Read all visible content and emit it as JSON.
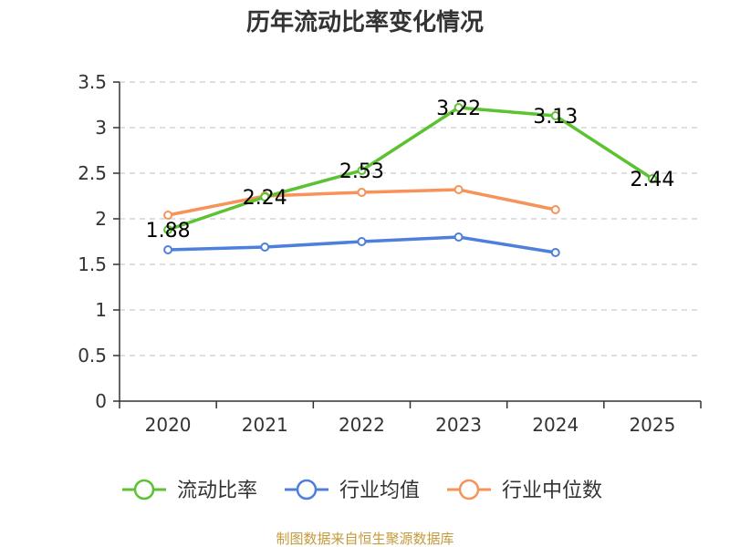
{
  "chart_data": {
    "type": "line",
    "title": "历年流动比率变化情况",
    "categories": [
      "2020",
      "2021",
      "2022",
      "2023",
      "2024",
      "2025"
    ],
    "ylim": [
      0,
      3.5
    ],
    "yticks": [
      "0",
      "0.5",
      "1",
      "1.5",
      "2",
      "2.5",
      "3",
      "3.5"
    ],
    "ytick_values": [
      0,
      0.5,
      1,
      1.5,
      2,
      2.5,
      3,
      3.5
    ],
    "grid": true,
    "legend_position": "bottom",
    "series": [
      {
        "name": "流动比率",
        "color": "#5cc232",
        "values": [
          1.88,
          2.24,
          2.53,
          3.22,
          3.13,
          2.44
        ],
        "labels": [
          "1.88",
          "2.24",
          "2.53",
          "3.22",
          "3.13",
          "2.44"
        ],
        "show_labels": true
      },
      {
        "name": "行业均值",
        "color": "#4d7fdc",
        "values": [
          1.66,
          1.69,
          1.75,
          1.8,
          1.63,
          null
        ],
        "show_labels": false
      },
      {
        "name": "行业中位数",
        "color": "#f79259",
        "values": [
          2.04,
          2.25,
          2.29,
          2.32,
          2.1,
          null
        ],
        "show_labels": false
      }
    ],
    "source": "制图数据来自恒生聚源数据库",
    "source_color": "#c59a3a",
    "axis_color": "#333333",
    "grid_color": "#cccccc"
  }
}
